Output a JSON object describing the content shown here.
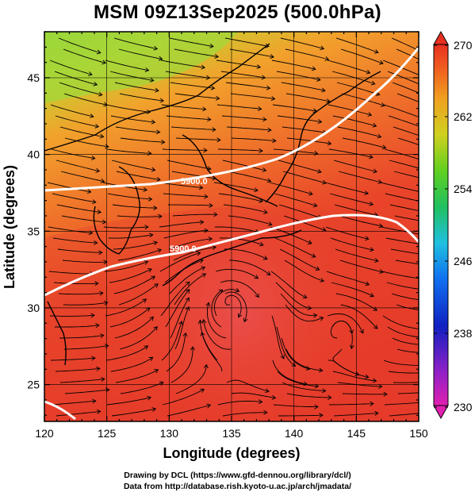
{
  "title": "MSM 09Z13Sep2025 (500.0hPa)",
  "x_axis": {
    "label": "Longitude (degrees)",
    "ticks": [
      120,
      125,
      130,
      135,
      140,
      145,
      150
    ]
  },
  "y_axis": {
    "label": "Latitude  (degrees)",
    "ticks": [
      25,
      30,
      35,
      40,
      45
    ]
  },
  "colorbar": {
    "ticks": [
      270,
      262,
      254,
      246,
      238,
      230
    ]
  },
  "contours": [
    {
      "label": "5900.0"
    },
    {
      "label": "5900.0"
    }
  ],
  "credits": {
    "line1": "Drawing by DCL (https://www.gfd-dennou.org/library/dcl/)",
    "line2": "Data from http://database.rish.kyoto-u.ac.jp/arch/jmadata/"
  },
  "colors": {
    "warm": "#e8442a",
    "mid": "#f08a2a",
    "cool": "#9ad23a",
    "contour": "#ffffff"
  }
}
